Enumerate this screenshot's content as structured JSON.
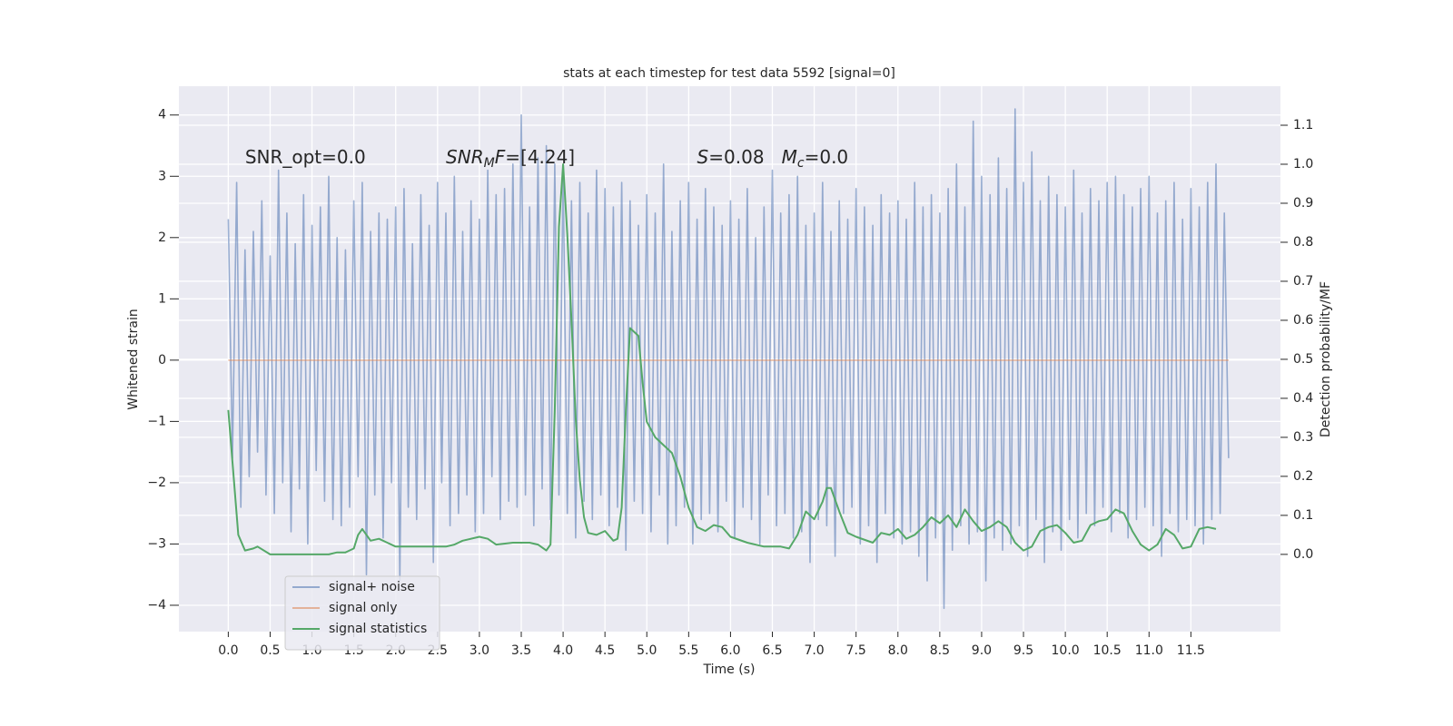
{
  "chart_data": {
    "type": "line",
    "title": "stats at each timestep for test data 5592 [signal=0]",
    "xlabel": "Time (s)",
    "ylabel": "Whitened strain",
    "y2label": "Detection probability/MF",
    "xlim": [
      -0.59,
      12.57
    ],
    "ylim": [
      -4.43,
      4.47
    ],
    "y2lim": [
      -0.198,
      1.2
    ],
    "grid": true,
    "legend": "lower left",
    "xticks": [
      {
        "value": 0,
        "label": "0.0"
      },
      0.5,
      {
        "value": 1,
        "label": "1.0"
      },
      1.5,
      {
        "value": 2,
        "label": "2.0"
      },
      2.5,
      {
        "value": 3,
        "label": "3.0"
      },
      3.5,
      {
        "value": 4,
        "label": "4.0"
      },
      4.5,
      {
        "value": 5,
        "label": "5.0"
      },
      5.5,
      {
        "value": 6,
        "label": "6.0"
      },
      6.5,
      {
        "value": 7,
        "label": "7.0"
      },
      7.5,
      {
        "value": 8,
        "label": "8.0"
      },
      8.5,
      {
        "value": 9,
        "label": "9.0"
      },
      9.5,
      {
        "value": 10,
        "label": "10.0"
      },
      10.5,
      {
        "value": 11,
        "label": "11.0"
      },
      11.5
    ],
    "yticks": [
      {
        "value": -4,
        "label": "−4"
      },
      {
        "value": -3,
        "label": "−3"
      },
      {
        "value": -2,
        "label": "−2"
      },
      {
        "value": -1,
        "label": "−1"
      },
      0,
      1,
      2,
      3,
      4
    ],
    "y2ticks": [
      {
        "value": 0,
        "label": "0.0"
      },
      0.1,
      0.2,
      0.3,
      0.4,
      0.5,
      0.6,
      0.7,
      0.8,
      0.9,
      {
        "value": 1,
        "label": "1.0"
      },
      1.1
    ],
    "annotations": [
      {
        "spans": [
          {
            "text": "SNR_opt=0.0"
          }
        ],
        "x": 0.2,
        "y": 3.3
      },
      {
        "spans": [
          {
            "text": "SNR",
            "italic": true
          },
          {
            "text": "M",
            "italic": true,
            "sub": true
          },
          {
            "text": "F",
            "italic": true
          },
          {
            "text": "=[4.24]"
          }
        ],
        "x": 2.6,
        "y": 3.3
      },
      {
        "spans": [
          {
            "text": "S",
            "italic": true
          },
          {
            "text": "=0.08   "
          },
          {
            "text": "M",
            "italic": true
          },
          {
            "text": "c",
            "italic": true,
            "sub": true
          },
          {
            "text": "=0.0"
          }
        ],
        "x": 5.6,
        "y": 3.3
      }
    ],
    "series": [
      {
        "name": "signal+ noise",
        "color": "#4c72b0",
        "opacity": 0.55,
        "x": [
          0,
          0.05,
          0.1,
          0.15,
          0.2,
          0.25,
          0.3,
          0.35,
          0.4,
          0.45,
          0.5,
          0.55,
          0.6,
          0.65,
          0.7,
          0.75,
          0.8,
          0.85,
          0.9,
          0.95,
          1,
          1.05,
          1.1,
          1.15,
          1.2,
          1.25,
          1.3,
          1.35,
          1.4,
          1.45,
          1.5,
          1.55,
          1.6,
          1.65,
          1.7,
          1.75,
          1.8,
          1.85,
          1.9,
          1.95,
          2,
          2.05,
          2.1,
          2.15,
          2.2,
          2.25,
          2.3,
          2.35,
          2.4,
          2.45,
          2.5,
          2.55,
          2.6,
          2.65,
          2.7,
          2.75,
          2.8,
          2.85,
          2.9,
          2.95,
          3,
          3.05,
          3.1,
          3.15,
          3.2,
          3.25,
          3.3,
          3.35,
          3.4,
          3.45,
          3.5,
          3.55,
          3.6,
          3.65,
          3.7,
          3.75,
          3.8,
          3.85,
          3.9,
          3.95,
          4,
          4.05,
          4.1,
          4.15,
          4.2,
          4.25,
          4.3,
          4.35,
          4.4,
          4.45,
          4.5,
          4.55,
          4.6,
          4.65,
          4.7,
          4.75,
          4.8,
          4.85,
          4.9,
          4.95,
          5,
          5.05,
          5.1,
          5.15,
          5.2,
          5.25,
          5.3,
          5.35,
          5.4,
          5.45,
          5.5,
          5.55,
          5.6,
          5.65,
          5.7,
          5.75,
          5.8,
          5.85,
          5.9,
          5.95,
          6,
          6.05,
          6.1,
          6.15,
          6.2,
          6.25,
          6.3,
          6.35,
          6.4,
          6.45,
          6.5,
          6.55,
          6.6,
          6.65,
          6.7,
          6.75,
          6.8,
          6.85,
          6.9,
          6.95,
          7,
          7.05,
          7.1,
          7.15,
          7.2,
          7.25,
          7.3,
          7.35,
          7.4,
          7.45,
          7.5,
          7.55,
          7.6,
          7.65,
          7.7,
          7.75,
          7.8,
          7.85,
          7.9,
          7.95,
          8,
          8.05,
          8.1,
          8.15,
          8.2,
          8.25,
          8.3,
          8.35,
          8.4,
          8.45,
          8.5,
          8.55,
          8.6,
          8.65,
          8.7,
          8.75,
          8.8,
          8.85,
          8.9,
          8.95,
          9,
          9.05,
          9.1,
          9.15,
          9.2,
          9.25,
          9.3,
          9.35,
          9.4,
          9.45,
          9.5,
          9.55,
          9.6,
          9.65,
          9.7,
          9.75,
          9.8,
          9.85,
          9.9,
          9.95,
          10,
          10.05,
          10.1,
          10.15,
          10.2,
          10.25,
          10.3,
          10.35,
          10.4,
          10.45,
          10.5,
          10.55,
          10.6,
          10.65,
          10.7,
          10.75,
          10.8,
          10.85,
          10.9,
          10.95,
          11,
          11.05,
          11.1,
          11.15,
          11.2,
          11.25,
          11.3,
          11.35,
          11.4,
          11.45,
          11.5,
          11.55,
          11.6,
          11.65,
          11.7,
          11.75,
          11.8,
          11.85,
          11.9,
          11.95
        ],
        "values": [
          2.3,
          -1.6,
          2.9,
          -2.4,
          1.8,
          -1.9,
          2.1,
          -1.5,
          2.6,
          -2.2,
          1.7,
          -2.5,
          3.1,
          -2.0,
          2.4,
          -2.8,
          1.9,
          -2.1,
          2.7,
          -3.0,
          2.2,
          -1.8,
          2.5,
          -2.3,
          3.0,
          -2.6,
          2.0,
          -2.7,
          1.8,
          -2.4,
          2.6,
          -1.9,
          2.9,
          -3.5,
          2.1,
          -2.2,
          2.4,
          -2.9,
          2.3,
          -2.0,
          2.5,
          -3.6,
          2.8,
          -2.4,
          1.9,
          -2.6,
          2.7,
          -2.1,
          2.2,
          -3.3,
          2.9,
          -2.0,
          2.4,
          -2.7,
          3.0,
          -2.5,
          2.1,
          -2.2,
          2.6,
          -2.8,
          2.3,
          -2.5,
          3.1,
          -1.9,
          2.7,
          -2.6,
          2.8,
          -2.3,
          3.2,
          -2.4,
          4.0,
          -2.2,
          2.5,
          -2.7,
          3.3,
          -2.1,
          3.5,
          -2.6,
          3.2,
          -2.2,
          3.0,
          -2.5,
          2.6,
          -2.9,
          2.9,
          -2.3,
          2.4,
          -2.6,
          3.1,
          -2.2,
          2.8,
          -2.7,
          2.5,
          -2.4,
          2.9,
          -3.1,
          2.6,
          -2.3,
          2.2,
          -2.5,
          2.7,
          -2.8,
          2.4,
          -2.2,
          3.2,
          -3.0,
          2.1,
          -2.7,
          2.6,
          -2.4,
          2.9,
          -3.0,
          2.3,
          -2.6,
          2.8,
          -2.5,
          2.5,
          -2.8,
          2.2,
          -2.3,
          2.6,
          -2.9,
          2.3,
          -2.4,
          2.8,
          -2.6,
          2.0,
          -3.0,
          2.5,
          -2.2,
          3.1,
          -2.7,
          2.4,
          -2.5,
          2.7,
          -2.9,
          3.0,
          -2.8,
          2.2,
          -3.3,
          2.4,
          -2.6,
          2.9,
          -2.7,
          2.1,
          -3.2,
          2.6,
          -2.5,
          2.3,
          -2.4,
          2.8,
          -3.0,
          2.5,
          -2.7,
          2.2,
          -3.3,
          2.7,
          -2.5,
          2.4,
          -2.9,
          2.6,
          -3.0,
          2.3,
          -2.8,
          2.9,
          -3.2,
          2.5,
          -3.6,
          2.7,
          -2.9,
          2.4,
          -4.05,
          2.8,
          -3.1,
          3.2,
          -2.7,
          2.5,
          -3.0,
          3.9,
          -2.8,
          3.0,
          -3.6,
          2.7,
          -2.9,
          3.3,
          -3.1,
          2.8,
          -3.0,
          4.1,
          -2.7,
          2.9,
          -3.2,
          3.4,
          -2.6,
          2.6,
          -3.3,
          3.0,
          -2.8,
          2.7,
          -3.1,
          2.5,
          -2.6,
          3.1,
          -2.9,
          2.4,
          -2.5,
          2.8,
          -2.7,
          2.6,
          -2.4,
          2.9,
          -2.8,
          3.0,
          -2.5,
          2.7,
          -2.9,
          2.5,
          -2.6,
          2.8,
          -2.4,
          3.0,
          -2.7,
          2.4,
          -3.2,
          2.6,
          -2.5,
          2.9,
          -2.8,
          2.3,
          -2.6,
          2.8,
          -2.7,
          2.5,
          -3.0,
          2.9,
          -2.6,
          3.2,
          -2.5,
          2.4,
          -1.6
        ]
      },
      {
        "name": "signal only",
        "color": "#dd8452",
        "opacity": 0.55,
        "x": [
          0,
          11.95
        ],
        "values": [
          0,
          0
        ]
      },
      {
        "name": "signal statistics",
        "color": "#55a868",
        "opacity": 1,
        "axis": "y2",
        "x": [
          0,
          0.12,
          0.2,
          0.3,
          0.35,
          0.5,
          0.6,
          0.8,
          1,
          1.2,
          1.3,
          1.4,
          1.5,
          1.55,
          1.6,
          1.7,
          1.8,
          1.9,
          2,
          2.2,
          2.4,
          2.6,
          2.7,
          2.8,
          3,
          3.1,
          3.2,
          3.4,
          3.6,
          3.7,
          3.8,
          3.85,
          3.9,
          3.95,
          4,
          4.05,
          4.1,
          4.15,
          4.2,
          4.25,
          4.3,
          4.4,
          4.5,
          4.6,
          4.65,
          4.7,
          4.75,
          4.8,
          4.9,
          4.95,
          5,
          5.1,
          5.2,
          5.3,
          5.4,
          5.5,
          5.6,
          5.7,
          5.8,
          5.9,
          6,
          6.2,
          6.4,
          6.6,
          6.7,
          6.8,
          6.9,
          7,
          7.1,
          7.15,
          7.2,
          7.3,
          7.4,
          7.5,
          7.7,
          7.8,
          7.9,
          8,
          8.1,
          8.2,
          8.3,
          8.4,
          8.5,
          8.6,
          8.7,
          8.8,
          8.9,
          9,
          9.1,
          9.2,
          9.3,
          9.4,
          9.5,
          9.6,
          9.7,
          9.8,
          9.9,
          10,
          10.1,
          10.2,
          10.3,
          10.4,
          10.5,
          10.6,
          10.7,
          10.8,
          10.9,
          11,
          11.1,
          11.2,
          11.3,
          11.4,
          11.5,
          11.6,
          11.7,
          11.8
        ],
        "values": [
          0.37,
          0.05,
          0.01,
          0.015,
          0.02,
          0,
          0,
          0,
          0,
          0,
          0.005,
          0.005,
          0.015,
          0.05,
          0.065,
          0.035,
          0.04,
          0.03,
          0.02,
          0.02,
          0.02,
          0.02,
          0.025,
          0.035,
          0.045,
          0.04,
          0.025,
          0.03,
          0.03,
          0.025,
          0.01,
          0.025,
          0.37,
          0.84,
          1.0,
          0.82,
          0.6,
          0.35,
          0.19,
          0.095,
          0.055,
          0.05,
          0.06,
          0.035,
          0.04,
          0.12,
          0.37,
          0.58,
          0.56,
          0.44,
          0.34,
          0.3,
          0.28,
          0.26,
          0.2,
          0.12,
          0.07,
          0.06,
          0.075,
          0.07,
          0.045,
          0.03,
          0.02,
          0.02,
          0.015,
          0.05,
          0.11,
          0.09,
          0.135,
          0.17,
          0.17,
          0.11,
          0.055,
          0.045,
          0.03,
          0.055,
          0.05,
          0.065,
          0.04,
          0.05,
          0.07,
          0.095,
          0.08,
          0.1,
          0.07,
          0.115,
          0.085,
          0.06,
          0.07,
          0.085,
          0.07,
          0.03,
          0.01,
          0.02,
          0.06,
          0.07,
          0.075,
          0.055,
          0.03,
          0.035,
          0.075,
          0.085,
          0.09,
          0.115,
          0.105,
          0.06,
          0.025,
          0.01,
          0.025,
          0.065,
          0.05,
          0.015,
          0.02,
          0.065,
          0.07,
          0.065
        ]
      }
    ]
  }
}
